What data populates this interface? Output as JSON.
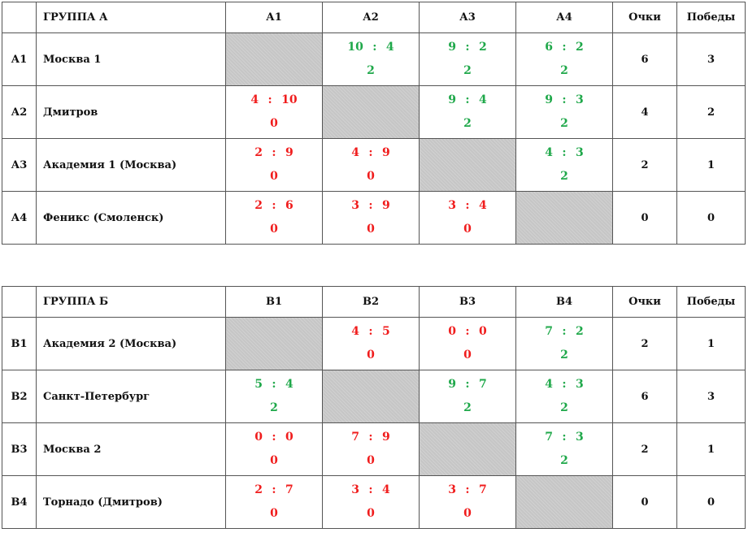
{
  "groups": [
    {
      "title": "ГРУППА А",
      "columns": [
        "А1",
        "А2",
        "А3",
        "А4"
      ],
      "points_label": "Очки",
      "wins_label": "Победы",
      "teams": [
        {
          "code": "А1",
          "name": "Москва 1",
          "points": "6",
          "wins": "3",
          "cells": [
            null,
            {
              "left": "10",
              "right": "4",
              "pts": "2",
              "result": "win"
            },
            {
              "left": "9",
              "right": "2",
              "pts": "2",
              "result": "win"
            },
            {
              "left": "6",
              "right": "2",
              "pts": "2",
              "result": "win"
            }
          ]
        },
        {
          "code": "А2",
          "name": "Дмитров",
          "points": "4",
          "wins": "2",
          "cells": [
            {
              "left": "4",
              "right": "10",
              "pts": "0",
              "result": "loss"
            },
            null,
            {
              "left": "9",
              "right": "4",
              "pts": "2",
              "result": "win"
            },
            {
              "left": "9",
              "right": "3",
              "pts": "2",
              "result": "win"
            }
          ]
        },
        {
          "code": "А3",
          "name": "Академия 1 (Москва)",
          "points": "2",
          "wins": "1",
          "cells": [
            {
              "left": "2",
              "right": "9",
              "pts": "0",
              "result": "loss"
            },
            {
              "left": "4",
              "right": "9",
              "pts": "0",
              "result": "loss"
            },
            null,
            {
              "left": "4",
              "right": "3",
              "pts": "2",
              "result": "win"
            }
          ]
        },
        {
          "code": "А4",
          "name": "Феникс (Смоленск)",
          "points": "0",
          "wins": "0",
          "cells": [
            {
              "left": "2",
              "right": "6",
              "pts": "0",
              "result": "loss"
            },
            {
              "left": "3",
              "right": "9",
              "pts": "0",
              "result": "loss"
            },
            {
              "left": "3",
              "right": "4",
              "pts": "0",
              "result": "loss"
            },
            null
          ]
        }
      ]
    },
    {
      "title": "ГРУППА Б",
      "columns": [
        "В1",
        "В2",
        "В3",
        "В4"
      ],
      "points_label": "Очки",
      "wins_label": "Победы",
      "teams": [
        {
          "code": "В1",
          "name": "Академия 2 (Москва)",
          "points": "2",
          "wins": "1",
          "cells": [
            null,
            {
              "left": "4",
              "right": "5",
              "pts": "0",
              "result": "loss"
            },
            {
              "left": "0",
              "right": "0",
              "pts": "0",
              "result": "loss"
            },
            {
              "left": "7",
              "right": "2",
              "pts": "2",
              "result": "win"
            }
          ]
        },
        {
          "code": "В2",
          "name": "Санкт-Петербург",
          "points": "6",
          "wins": "3",
          "cells": [
            {
              "left": "5",
              "right": "4",
              "pts": "2",
              "result": "win"
            },
            null,
            {
              "left": "9",
              "right": "7",
              "pts": "2",
              "result": "win"
            },
            {
              "left": "4",
              "right": "3",
              "pts": "2",
              "result": "win"
            }
          ]
        },
        {
          "code": "В3",
          "name": "Москва 2",
          "points": "2",
          "wins": "1",
          "cells": [
            {
              "left": "0",
              "right": "0",
              "pts": "0",
              "result": "loss"
            },
            {
              "left": "7",
              "right": "9",
              "pts": "0",
              "result": "loss"
            },
            null,
            {
              "left": "7",
              "right": "3",
              "pts": "2",
              "result": "win"
            }
          ]
        },
        {
          "code": "В4",
          "name": "Торнадо (Дмитров)",
          "points": "0",
          "wins": "0",
          "cells": [
            {
              "left": "2",
              "right": "7",
              "pts": "0",
              "result": "loss"
            },
            {
              "left": "3",
              "right": "4",
              "pts": "0",
              "result": "loss"
            },
            {
              "left": "3",
              "right": "7",
              "pts": "0",
              "result": "loss"
            },
            null
          ]
        }
      ]
    }
  ],
  "colors": {
    "win": "#1fa84a",
    "loss": "#f01c1c",
    "self_cell": "#c6c6c6"
  }
}
